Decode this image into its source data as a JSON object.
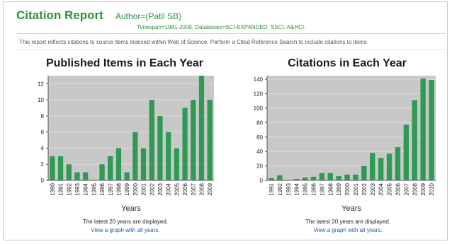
{
  "header": {
    "title": "Citation Report",
    "author": "Author=(Patil SB)",
    "timespan": "Timespan=1981-2009. Databases=SCI-EXPANDED, SSCI, A&HCI.",
    "info": "This report reflects citations to source items indexed within Web of Science. Perform a Cited Reference Search to include citations to items"
  },
  "colors": {
    "accent": "#2f8f3a",
    "bar": "#2e9a53",
    "plot_bg": "#c8c8c8",
    "link": "#2a55b5"
  },
  "chart_data": [
    {
      "type": "bar",
      "title": "Published Items in Each Year",
      "xlabel": "Years",
      "ylabel": "",
      "ylim": [
        0,
        13
      ],
      "yticks": [
        0,
        2,
        4,
        6,
        8,
        10,
        12
      ],
      "categories": [
        "1990",
        "1991",
        "1992",
        "1993",
        "1994",
        "1995",
        "1996",
        "1997",
        "1998",
        "1999",
        "2000",
        "2001",
        "2002",
        "2003",
        "2004",
        "2005",
        "2006",
        "2007",
        "2008",
        "2009"
      ],
      "values": [
        3,
        3,
        2,
        1,
        1,
        0,
        2,
        3,
        4,
        1,
        6,
        4,
        10,
        8,
        6,
        4,
        9,
        10,
        13,
        10
      ],
      "grid": true,
      "note": "The latest 20 years are displayed.",
      "link": "View a graph with all years."
    },
    {
      "type": "bar",
      "title": "Citations in Each Year",
      "xlabel": "Years",
      "ylabel": "",
      "ylim": [
        0,
        145
      ],
      "yticks": [
        0,
        20,
        40,
        60,
        80,
        100,
        120,
        140
      ],
      "categories": [
        "1991",
        "1992",
        "1993",
        "1994",
        "1995",
        "1996",
        "1997",
        "1998",
        "1999",
        "2000",
        "2001",
        "2002",
        "2003",
        "2004",
        "2005",
        "2006",
        "2007",
        "2008",
        "2009",
        "2010"
      ],
      "values": [
        3,
        7,
        0,
        2,
        4,
        5,
        10,
        10,
        6,
        8,
        8,
        20,
        38,
        31,
        37,
        46,
        77,
        111,
        141,
        139
      ],
      "grid": true,
      "note": "The latest 20 years are displayed.",
      "link": "View a graph with all years."
    }
  ]
}
